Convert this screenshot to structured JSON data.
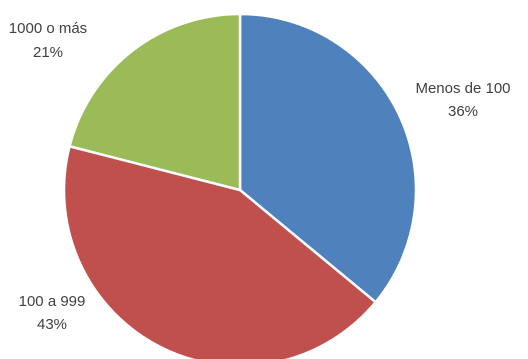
{
  "chart_data": {
    "type": "pie",
    "title": "",
    "slices": [
      {
        "label": "Menos de 100",
        "percent_label": "36%",
        "value": 36,
        "color": "#4F81BD"
      },
      {
        "label": "100 a 999",
        "percent_label": "43%",
        "value": 43,
        "color": "#C0504D"
      },
      {
        "label": "1000 o más",
        "percent_label": "21%",
        "value": 21,
        "color": "#9BBB59"
      }
    ],
    "legend": "none",
    "start_angle_deg": 0,
    "direction": "clockwise"
  }
}
